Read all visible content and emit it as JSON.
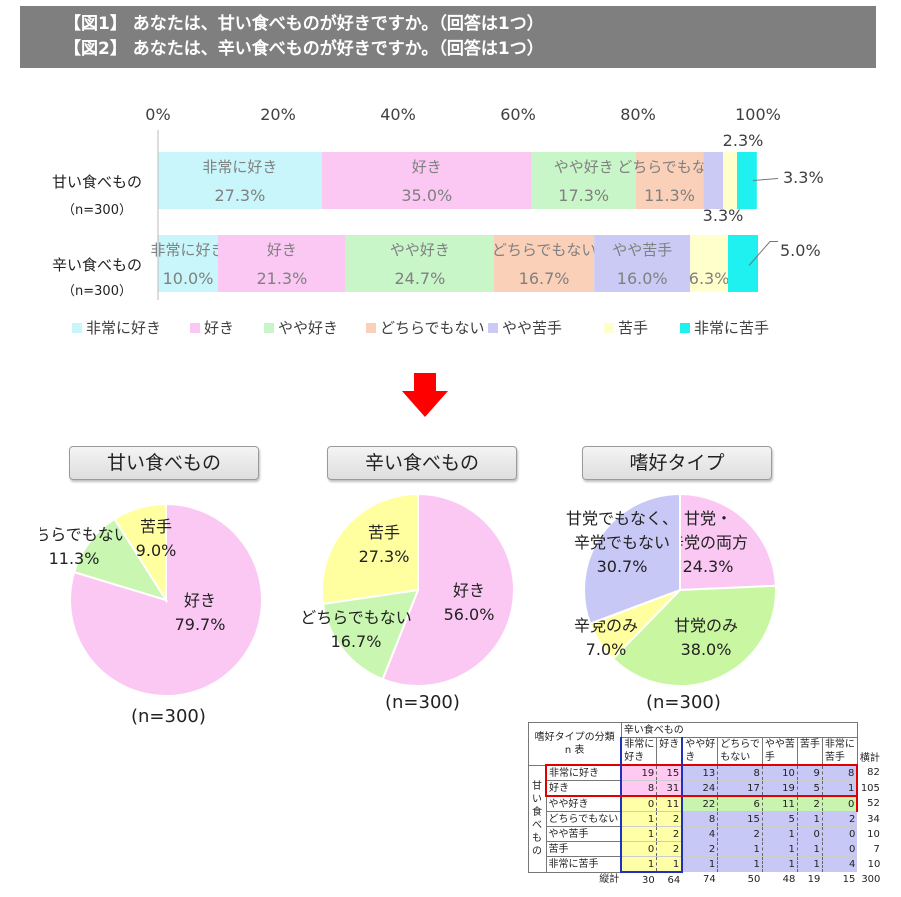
{
  "header": {
    "line1": "【図1】 あなたは、甘い食べものが好きですか。（回答は1つ）",
    "line2": "【図2】 あなたは、辛い食べものが好きですか。（回答は1つ）"
  },
  "chart_data": [
    {
      "type": "bar",
      "orientation": "horizontal-stacked-100",
      "x_ticks": [
        "0%",
        "20%",
        "40%",
        "60%",
        "80%",
        "100%"
      ],
      "xlim": [
        0,
        100
      ],
      "categories": [
        "甘い食べもの",
        "辛い食べもの"
      ],
      "category_n": [
        "（n=300）",
        "（n=300）"
      ],
      "legend_position": "bottom",
      "series": [
        {
          "name": "非常に好き",
          "color": "#c9f6fa",
          "values": [
            27.3,
            10.0
          ],
          "labels": [
            "27.3%",
            "10.0%"
          ]
        },
        {
          "name": "好き",
          "color": "#fbc8f4",
          "values": [
            35.0,
            21.3
          ],
          "labels": [
            "35.0%",
            "21.3%"
          ]
        },
        {
          "name": "やや好き",
          "color": "#c8f6c8",
          "values": [
            17.3,
            24.7
          ],
          "labels": [
            "17.3%",
            "24.7%"
          ]
        },
        {
          "name": "どちらでもない",
          "color": "#fbd0b8",
          "values": [
            11.3,
            16.7
          ],
          "labels": [
            "11.3%",
            "16.7%"
          ]
        },
        {
          "name": "やや苦手",
          "color": "#cacaf4",
          "values": [
            3.3,
            16.0
          ],
          "labels": [
            "3.3%",
            "16.0%"
          ]
        },
        {
          "name": "苦手",
          "color": "#ffffcc",
          "values": [
            2.3,
            6.3
          ],
          "labels": [
            "2.3%",
            "6.3%"
          ]
        },
        {
          "name": "非常に苦手",
          "color": "#1ff0f0",
          "values": [
            3.3,
            5.0
          ],
          "labels": [
            "3.3%",
            "5.0%"
          ]
        }
      ]
    },
    {
      "type": "pie",
      "title": "甘い食べもの",
      "n_label": "(n=300)",
      "slices": [
        {
          "label": "好き",
          "value": 79.7,
          "color": "#fbc8f4"
        },
        {
          "label": "どちらでもない",
          "value": 11.3,
          "color": "#c9f6b0"
        },
        {
          "label": "苦手",
          "value": 9.0,
          "color": "#ffffa0"
        }
      ]
    },
    {
      "type": "pie",
      "title": "辛い食べもの",
      "n_label": "(n=300)",
      "slices": [
        {
          "label": "好き",
          "value": 56.0,
          "color": "#fbc8f4"
        },
        {
          "label": "どちらでもない",
          "value": 16.7,
          "color": "#c9f6b0"
        },
        {
          "label": "苦手",
          "value": 27.3,
          "color": "#ffffa0"
        }
      ]
    },
    {
      "type": "pie",
      "title": "嗜好タイプ",
      "n_label": "(n=300)",
      "slices": [
        {
          "label": "甘党・辛党の両方",
          "value": 24.3,
          "color": "#fbc8f4"
        },
        {
          "label": "甘党のみ",
          "value": 38.0,
          "color": "#c9f6a0"
        },
        {
          "label": "辛党のみ",
          "value": 7.0,
          "color": "#ffffa0"
        },
        {
          "label": "甘党でもなく、辛党でもない",
          "value": 30.7,
          "color": "#c8c8f6"
        }
      ]
    },
    {
      "type": "table",
      "corner_title": "嗜好タイプの分類",
      "corner_sub": "n 表",
      "col_group": "辛い食べもの",
      "row_group": [
        "甘",
        "い",
        "食",
        "べ",
        "も",
        "の"
      ],
      "columns": [
        "非常に好き",
        "好き",
        "やや好き",
        "どちらでもない",
        "やや苦手",
        "苦手",
        "非常に苦手"
      ],
      "column_lines": [
        [
          "非常に",
          "好き"
        ],
        [
          "好き",
          ""
        ],
        [
          "やや好",
          "き"
        ],
        [
          "どちらで",
          "もない"
        ],
        [
          "やや苦",
          "手"
        ],
        [
          "苦手",
          ""
        ],
        [
          "非常に",
          "苦手"
        ]
      ],
      "row_total_label": "横計",
      "col_total_label": "縦計",
      "rows": [
        {
          "label": "非常に好き",
          "values": [
            19,
            15,
            13,
            8,
            10,
            9,
            8
          ],
          "total": 82
        },
        {
          "label": "好き",
          "values": [
            8,
            31,
            24,
            17,
            19,
            5,
            1
          ],
          "total": 105
        },
        {
          "label": "やや好き",
          "values": [
            0,
            11,
            22,
            6,
            11,
            2,
            0
          ],
          "total": 52
        },
        {
          "label": "どちらでもない",
          "values": [
            1,
            2,
            8,
            15,
            5,
            1,
            2
          ],
          "total": 34
        },
        {
          "label": "やや苦手",
          "values": [
            1,
            2,
            4,
            2,
            1,
            0,
            0
          ],
          "total": 10
        },
        {
          "label": "苦手",
          "values": [
            0,
            2,
            2,
            1,
            1,
            1,
            0
          ],
          "total": 7
        },
        {
          "label": "非常に苦手",
          "values": [
            1,
            1,
            1,
            1,
            1,
            1,
            4
          ],
          "total": 10
        }
      ],
      "col_totals": [
        30,
        64,
        74,
        50,
        48,
        19,
        15
      ],
      "grand_total": 300
    }
  ]
}
